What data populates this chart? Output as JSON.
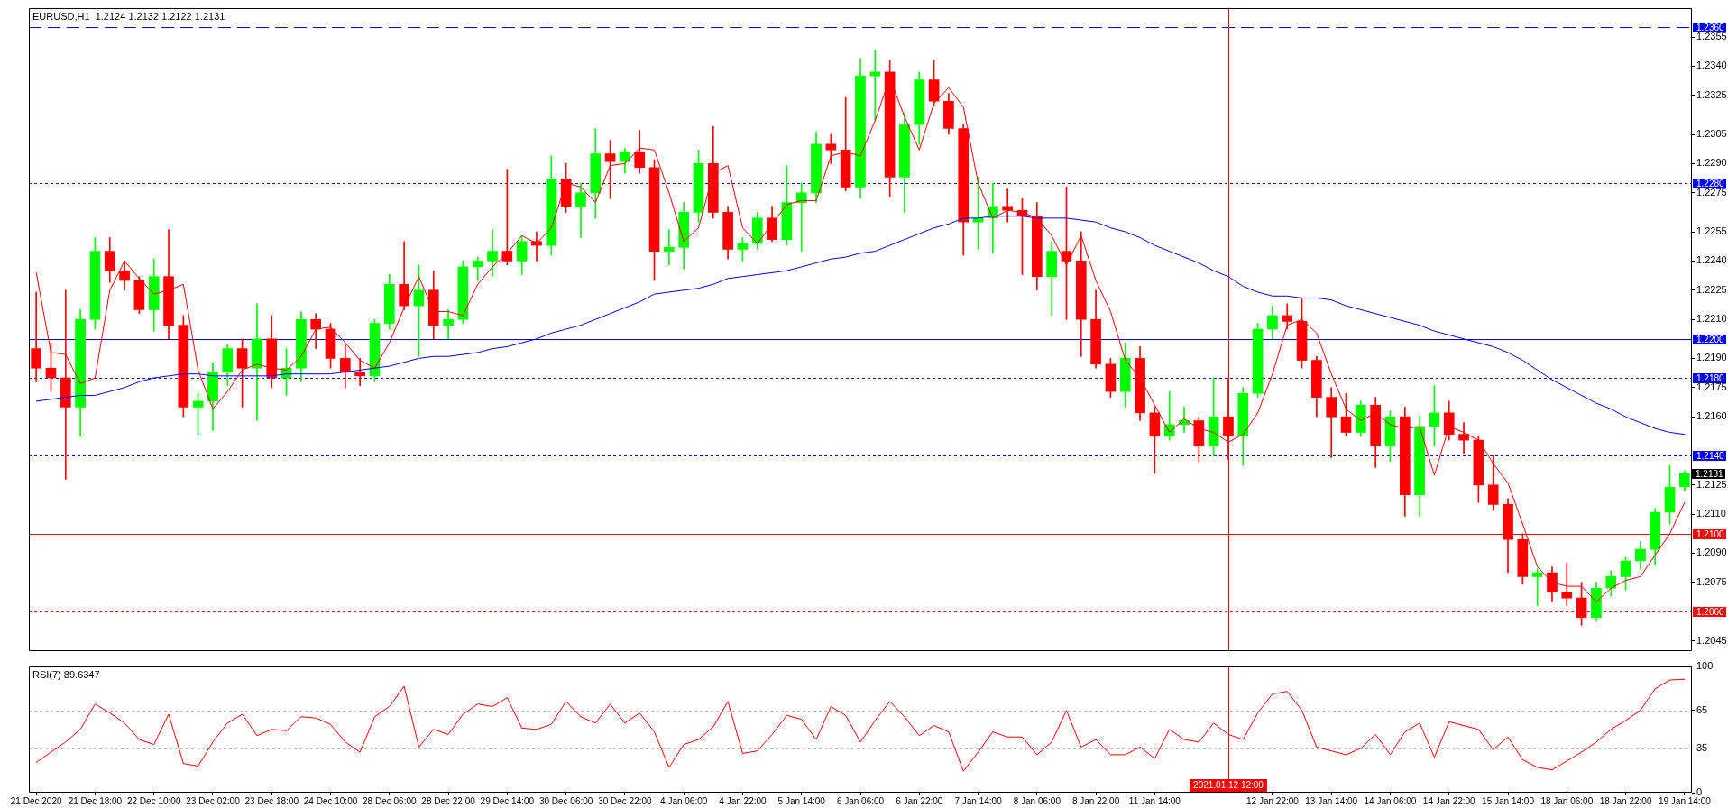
{
  "chart_data": [
    {
      "type": "candlestick",
      "title": "EURUSD,H1  1.2124 1.2132 1.2122 1.2131",
      "categories": [
        "21 Dec 2020",
        null,
        null,
        null,
        "21 Dec 18:00",
        null,
        null,
        null,
        "22 Dec 10:00",
        null,
        null,
        null,
        "23 Dec 02:00",
        null,
        null,
        null,
        "23 Dec 18:00",
        null,
        null,
        null,
        "24 Dec 10:00",
        null,
        null,
        null,
        "28 Dec 06:00",
        null,
        null,
        null,
        "28 Dec 22:00",
        null,
        null,
        null,
        "29 Dec 14:00",
        null,
        null,
        null,
        "30 Dec 06:00",
        null,
        null,
        null,
        "30 Dec 22:00",
        null,
        null,
        null,
        "4 Jan 06:00",
        null,
        null,
        null,
        "4 Jan 22:00",
        null,
        null,
        null,
        "5 Jan 14:00",
        null,
        null,
        null,
        "6 Jan 06:00",
        null,
        null,
        null,
        "6 Jan 22:00",
        null,
        null,
        null,
        "7 Jan 14:00",
        null,
        null,
        null,
        "8 Jan 06:00",
        null,
        null,
        null,
        "8 Jan 22:00",
        null,
        null,
        null,
        "11 Jan 14:00",
        null,
        null,
        null,
        null,
        "2021.01.12 12:00",
        null,
        null,
        "12 Jan 22:00",
        null,
        null,
        null,
        "13 Jan 14:00",
        null,
        null,
        null,
        "14 Jan 06:00",
        null,
        null,
        null,
        "14 Jan 22:00",
        null,
        null,
        null,
        "15 Jan 14:00",
        null,
        null,
        null,
        "18 Jan 06:00",
        null,
        null,
        null,
        "18 Jan 22:00",
        null,
        null,
        null,
        "19 Jan 14:00"
      ],
      "ohlc": [
        [
          1.2195,
          1.2224,
          1.2178,
          1.2185
        ],
        [
          1.2185,
          1.2198,
          1.2173,
          1.218
        ],
        [
          1.218,
          1.2225,
          1.2128,
          1.2165
        ],
        [
          1.2165,
          1.2215,
          1.215,
          1.221
        ],
        [
          1.221,
          1.2252,
          1.2205,
          1.2245
        ],
        [
          1.2245,
          1.2252,
          1.2229,
          1.2235
        ],
        [
          1.2235,
          1.224,
          1.2225,
          1.223
        ],
        [
          1.223,
          1.2232,
          1.2213,
          1.2215
        ],
        [
          1.2215,
          1.2241,
          1.2204,
          1.2232
        ],
        [
          1.2232,
          1.2256,
          1.22,
          1.2207
        ],
        [
          1.2207,
          1.2212,
          1.216,
          1.2165
        ],
        [
          1.2165,
          1.2172,
          1.2151,
          1.2168
        ],
        [
          1.2168,
          1.2188,
          1.2153,
          1.2183
        ],
        [
          1.2183,
          1.2197,
          1.2176,
          1.2195
        ],
        [
          1.2195,
          1.22,
          1.2165,
          1.2185
        ],
        [
          1.2185,
          1.2218,
          1.2158,
          1.22
        ],
        [
          1.22,
          1.2212,
          1.2175,
          1.218
        ],
        [
          1.218,
          1.2195,
          1.2171,
          1.2185
        ],
        [
          1.2185,
          1.2214,
          1.2178,
          1.221
        ],
        [
          1.221,
          1.2213,
          1.2195,
          1.2205
        ],
        [
          1.2205,
          1.2208,
          1.2185,
          1.219
        ],
        [
          1.219,
          1.2197,
          1.2175,
          1.2183
        ],
        [
          1.2183,
          1.219,
          1.2176,
          1.2181
        ],
        [
          1.2181,
          1.221,
          1.2178,
          1.2208
        ],
        [
          1.2208,
          1.2233,
          1.2205,
          1.2228
        ],
        [
          1.2228,
          1.225,
          1.2215,
          1.2217
        ],
        [
          1.2217,
          1.2238,
          1.2191,
          1.2225
        ],
        [
          1.2225,
          1.2235,
          1.22,
          1.2207
        ],
        [
          1.2207,
          1.2215,
          1.22,
          1.221
        ],
        [
          1.221,
          1.224,
          1.2208,
          1.2237
        ],
        [
          1.2237,
          1.2242,
          1.223,
          1.224
        ],
        [
          1.224,
          1.2256,
          1.2232,
          1.2245
        ],
        [
          1.2245,
          1.2287,
          1.2238,
          1.224
        ],
        [
          1.224,
          1.2253,
          1.2233,
          1.225
        ],
        [
          1.225,
          1.2255,
          1.224,
          1.2248
        ],
        [
          1.2248,
          1.2294,
          1.2243,
          1.2282
        ],
        [
          1.2282,
          1.229,
          1.2265,
          1.2268
        ],
        [
          1.2268,
          1.228,
          1.2252,
          1.2275
        ],
        [
          1.2275,
          1.2308,
          1.2262,
          1.2295
        ],
        [
          1.2295,
          1.2302,
          1.2272,
          1.2291
        ],
        [
          1.2291,
          1.2298,
          1.2285,
          1.2296
        ],
        [
          1.2296,
          1.2307,
          1.2285,
          1.2288
        ],
        [
          1.2288,
          1.2292,
          1.223,
          1.2245
        ],
        [
          1.2245,
          1.2256,
          1.2238,
          1.2247
        ],
        [
          1.2247,
          1.227,
          1.2236,
          1.2265
        ],
        [
          1.2265,
          1.2297,
          1.226,
          1.229
        ],
        [
          1.229,
          1.2309,
          1.2262,
          1.2265
        ],
        [
          1.2265,
          1.2268,
          1.2241,
          1.2246
        ],
        [
          1.2246,
          1.2252,
          1.224,
          1.2249
        ],
        [
          1.2249,
          1.2265,
          1.2246,
          1.2262
        ],
        [
          1.2262,
          1.2268,
          1.225,
          1.2251
        ],
        [
          1.2251,
          1.2289,
          1.2248,
          1.227
        ],
        [
          1.227,
          1.228,
          1.2245,
          1.2275
        ],
        [
          1.2275,
          1.2306,
          1.227,
          1.23
        ],
        [
          1.23,
          1.2305,
          1.229,
          1.2297
        ],
        [
          1.2297,
          1.2324,
          1.2276,
          1.2278
        ],
        [
          1.2278,
          1.2344,
          1.2272,
          1.2335
        ],
        [
          1.2335,
          1.2348,
          1.2312,
          1.2337
        ],
        [
          1.2337,
          1.2343,
          1.2273,
          1.2283
        ],
        [
          1.2283,
          1.2316,
          1.2265,
          1.231
        ],
        [
          1.231,
          1.2337,
          1.23,
          1.2333
        ],
        [
          1.2333,
          1.2343,
          1.232,
          1.2322
        ],
        [
          1.2322,
          1.2326,
          1.2305,
          1.2308
        ],
        [
          1.2308,
          1.231,
          1.2243,
          1.226
        ],
        [
          1.226,
          1.2283,
          1.2246,
          1.2262
        ],
        [
          1.2262,
          1.228,
          1.2244,
          1.2268
        ],
        [
          1.2268,
          1.2277,
          1.226,
          1.2266
        ],
        [
          1.2266,
          1.2272,
          1.2233,
          1.2263
        ],
        [
          1.2263,
          1.227,
          1.2225,
          1.2232
        ],
        [
          1.2232,
          1.225,
          1.2212,
          1.2245
        ],
        [
          1.2245,
          1.2278,
          1.221,
          1.224
        ],
        [
          1.224,
          1.2255,
          1.2191,
          1.221
        ],
        [
          1.221,
          1.2225,
          1.2185,
          1.2187
        ],
        [
          1.2187,
          1.219,
          1.217,
          1.2173
        ],
        [
          1.2173,
          1.2198,
          1.2165,
          1.219
        ],
        [
          1.219,
          1.2196,
          1.2158,
          1.2162
        ],
        [
          1.2162,
          1.2165,
          1.2131,
          1.215
        ],
        [
          1.215,
          1.2173,
          1.2148,
          1.2156
        ],
        [
          1.2156,
          1.2165,
          1.2152,
          1.2158
        ],
        [
          1.2158,
          1.216,
          1.2137,
          1.2145
        ],
        [
          1.2145,
          1.218,
          1.214,
          1.216
        ],
        [
          1.216,
          1.218,
          1.2138,
          1.215
        ],
        [
          1.215,
          1.2175,
          1.2135,
          1.2172
        ],
        [
          1.2172,
          1.2208,
          1.217,
          1.2205
        ],
        [
          1.2205,
          1.2217,
          1.22,
          1.2212
        ],
        [
          1.2212,
          1.2218,
          1.2205,
          1.2209
        ],
        [
          1.2209,
          1.2221,
          1.2185,
          1.2189
        ],
        [
          1.2189,
          1.2191,
          1.216,
          1.217
        ],
        [
          1.217,
          1.2175,
          1.2139,
          1.216
        ],
        [
          1.216,
          1.2172,
          1.215,
          1.2152
        ],
        [
          1.2152,
          1.2168,
          1.215,
          1.2166
        ],
        [
          1.2166,
          1.217,
          1.2134,
          1.2145
        ],
        [
          1.2145,
          1.2163,
          1.2137,
          1.216
        ],
        [
          1.216,
          1.2165,
          1.2109,
          1.212
        ],
        [
          1.212,
          1.216,
          1.2109,
          1.2155
        ],
        [
          1.2155,
          1.2176,
          1.2145,
          1.2162
        ],
        [
          1.2162,
          1.2168,
          1.2148,
          1.2151
        ],
        [
          1.2151,
          1.2157,
          1.2141,
          1.2148
        ],
        [
          1.2148,
          1.215,
          1.2116,
          1.2125
        ],
        [
          1.2125,
          1.214,
          1.2112,
          1.2115
        ],
        [
          1.2115,
          1.2118,
          1.208,
          1.2097
        ],
        [
          1.2097,
          1.21,
          1.2074,
          1.2078
        ],
        [
          1.2078,
          1.2082,
          1.2063,
          1.208
        ],
        [
          1.208,
          1.2083,
          1.2065,
          1.207
        ],
        [
          1.207,
          1.2085,
          1.2063,
          1.2067
        ],
        [
          1.2067,
          1.2075,
          1.2053,
          1.2057
        ],
        [
          1.2057,
          1.2075,
          1.2055,
          1.2072
        ],
        [
          1.2072,
          1.2081,
          1.2068,
          1.2078
        ],
        [
          1.2078,
          1.2088,
          1.2071,
          1.2086
        ],
        [
          1.2086,
          1.2096,
          1.2082,
          1.2092
        ],
        [
          1.2092,
          1.2113,
          1.2084,
          1.2111
        ],
        [
          1.2111,
          1.2135,
          1.2105,
          1.2124
        ],
        [
          1.2124,
          1.2132,
          1.2122,
          1.2131
        ]
      ],
      "colors": [
        "#ff0000",
        "#ff0000",
        "#ff0000",
        "#00ff00",
        "#00ff00",
        "#ff0000",
        "#ff0000",
        "#ff0000",
        "#00ff00",
        "#ff0000",
        "#ff0000",
        "#00ff00",
        "#00ff00",
        "#00ff00",
        "#ff0000",
        "#00ff00",
        "#ff0000",
        "#00ff00",
        "#00ff00",
        "#ff0000",
        "#ff0000",
        "#ff0000",
        "#ff0000",
        "#00ff00",
        "#00ff00",
        "#ff0000",
        "#00ff00",
        "#ff0000",
        "#00ff00",
        "#00ff00",
        "#00ff00",
        "#00ff00",
        "#ff0000",
        "#00ff00",
        "#ff0000",
        "#00ff00",
        "#ff0000",
        "#00ff00",
        "#00ff00",
        "#ff0000",
        "#00ff00",
        "#ff0000",
        "#ff0000",
        "#00ff00",
        "#00ff00",
        "#00ff00",
        "#ff0000",
        "#ff0000",
        "#00ff00",
        "#00ff00",
        "#ff0000",
        "#00ff00",
        "#00ff00",
        "#00ff00",
        "#ff0000",
        "#ff0000",
        "#00ff00",
        "#00ff00",
        "#ff0000",
        "#00ff00",
        "#00ff00",
        "#ff0000",
        "#ff0000",
        "#ff0000",
        "#00ff00",
        "#00ff00",
        "#ff0000",
        "#ff0000",
        "#ff0000",
        "#00ff00",
        "#ff0000",
        "#ff0000",
        "#ff0000",
        "#ff0000",
        "#00ff00",
        "#ff0000",
        "#ff0000",
        "#00ff00",
        "#00ff00",
        "#ff0000",
        "#00ff00",
        "#ff0000",
        "#00ff00",
        "#00ff00",
        "#00ff00",
        "#ff0000",
        "#ff0000",
        "#ff0000",
        "#ff0000",
        "#ff0000",
        "#00ff00",
        "#ff0000",
        "#00ff00",
        "#ff0000",
        "#00ff00",
        "#00ff00",
        "#ff0000",
        "#ff0000",
        "#ff0000",
        "#ff0000",
        "#ff0000",
        "#ff0000",
        "#00ff00",
        "#ff0000",
        "#ff0000",
        "#ff0000",
        "#00ff00",
        "#00ff00",
        "#00ff00",
        "#00ff00",
        "#00ff00",
        "#00ff00",
        "#00ff00"
      ],
      "series": [
        {
          "type": "line",
          "color": "#ff0000",
          "values": [
            1.2234,
            1.2193,
            1.2192,
            1.2177,
            1.218,
            1.2225,
            1.224,
            1.2231,
            1.2223,
            1.2225,
            1.2228,
            1.2184,
            1.2164,
            1.2173,
            1.2184,
            1.2187,
            1.2185,
            1.2184,
            1.2191,
            1.2205,
            1.2206,
            1.2198,
            1.2189,
            1.2185,
            1.2198,
            1.2216,
            1.2232,
            1.2214,
            1.2214,
            1.2212,
            1.2228,
            1.2237,
            1.2244,
            1.2253,
            1.2249,
            1.2257,
            1.228,
            1.2278,
            1.227,
            1.2289,
            1.229,
            1.2298,
            1.2297,
            1.2275,
            1.225,
            1.2257,
            1.2285,
            1.2289,
            1.2257,
            1.2249,
            1.2259,
            1.2269,
            1.2271,
            1.2271,
            1.2294,
            1.2296,
            1.2294,
            1.2312,
            1.2334,
            1.2314,
            1.2297,
            1.2321,
            1.2329,
            1.2319,
            1.228,
            1.2262,
            1.2266,
            1.2265,
            1.2262,
            1.2253,
            1.2238,
            1.2253,
            1.223,
            1.2214,
            1.2189,
            1.218,
            1.2166,
            1.2152,
            1.2159,
            1.2154,
            1.2152,
            1.2147,
            1.2151,
            1.2162,
            1.2182,
            1.2207,
            1.221,
            1.2203,
            1.2182,
            1.2164,
            1.2158,
            1.2162,
            1.2156,
            1.2154,
            1.2155,
            1.213,
            1.2155,
            1.2152,
            1.2148,
            1.2136,
            1.2126,
            1.2105,
            1.2083,
            1.2075,
            1.2073,
            1.2073,
            1.2065,
            1.2072,
            1.2076,
            1.2078,
            1.2089,
            1.21,
            1.2116
          ]
        },
        {
          "type": "line",
          "color": "#0000ff",
          "values": [
            1.2168,
            1.2169,
            1.217,
            1.2171,
            1.2171,
            1.2173,
            1.2175,
            1.2178,
            1.218,
            1.2181,
            1.2182,
            1.2182,
            1.2181,
            1.2181,
            1.2181,
            1.2181,
            1.2181,
            1.2182,
            1.2182,
            1.2182,
            1.2182,
            1.2183,
            1.2184,
            1.2185,
            1.2186,
            1.2188,
            1.219,
            1.2191,
            1.2191,
            1.2192,
            1.2193,
            1.2195,
            1.2196,
            1.2198,
            1.22,
            1.2203,
            1.2205,
            1.2207,
            1.221,
            1.2213,
            1.2216,
            1.2219,
            1.2223,
            1.2224,
            1.2225,
            1.2226,
            1.2228,
            1.2231,
            1.2232,
            1.2233,
            1.2234,
            1.2235,
            1.2237,
            1.2239,
            1.2241,
            1.2242,
            1.2244,
            1.2245,
            1.2248,
            1.2251,
            1.2254,
            1.2257,
            1.2259,
            1.2262,
            1.2262,
            1.2263,
            1.2263,
            1.2263,
            1.2262,
            1.2262,
            1.2262,
            1.2261,
            1.226,
            1.2257,
            1.2255,
            1.2252,
            1.2248,
            1.2245,
            1.2242,
            1.2239,
            1.2235,
            1.2232,
            1.2227,
            1.2224,
            1.2222,
            1.2222,
            1.2221,
            1.2221,
            1.222,
            1.2217,
            1.2215,
            1.2213,
            1.2211,
            1.2209,
            1.2207,
            1.2204,
            1.2202,
            1.22,
            1.2198,
            1.2196,
            1.2193,
            1.2189,
            1.2184,
            1.2179,
            1.2175,
            1.2171,
            1.2167,
            1.2164,
            1.216,
            1.2157,
            1.2154,
            1.2152,
            1.2151
          ]
        }
      ],
      "ylim": [
        1.204,
        1.237
      ],
      "yticks": [
        1.2045,
        1.2075,
        {
          "value": 1.209,
          "label": "1.2090"
        },
        {
          "value": 1.211,
          "label": "1.2110"
        },
        1.2125,
        {
          "value": 1.216,
          "label": "1.2160"
        },
        1.2175,
        {
          "value": 1.219,
          "label": "1.2190"
        },
        {
          "value": 1.221,
          "label": "1.2210"
        },
        1.2225,
        {
          "value": 1.224,
          "label": "1.2240"
        },
        1.2255,
        1.2275,
        {
          "value": 1.229,
          "label": "1.2290"
        },
        1.2305,
        1.2325,
        {
          "value": 1.234,
          "label": "1.2340"
        },
        1.2355
      ],
      "ref_lines": [
        {
          "axis": "y",
          "value": 1.236,
          "label": "1.2360",
          "color": "#0000ff",
          "line_style": "dashed"
        },
        {
          "axis": "y",
          "value": 1.228,
          "label": "1.2280",
          "color": "#0000ff",
          "line_style": "dotted"
        },
        {
          "axis": "y",
          "value": 1.22,
          "label": "1.2200",
          "color": "#0000ff",
          "line_style": "solid"
        },
        {
          "axis": "y",
          "value": 1.218,
          "label": "1.2180",
          "color": "#0000ff",
          "line_style": "dotted"
        },
        {
          "axis": "y",
          "value": 1.214,
          "label": "1.2140",
          "color": "#0000ff",
          "line_style": "dotted"
        },
        {
          "axis": "y",
          "value": 1.21,
          "label": "1.2100",
          "color": "#ff0000",
          "line_style": "solid"
        },
        {
          "axis": "y",
          "value": 1.206,
          "label": "1.2060",
          "color": "#ff0000",
          "line_style": "dotted"
        },
        {
          "axis": "x",
          "value": "2021.01.12 12:00",
          "color": "#ff0000",
          "line_style": "solid"
        }
      ],
      "annotations": [
        {
          "text": "1.2131",
          "x": "19 Jan 14:00",
          "y": 1.2131
        }
      ],
      "tick_labels": "y"
    },
    {
      "type": "line",
      "title": "RSI(7) 89.6347",
      "color": "#ff0000",
      "categories": [
        "21 Dec 2020",
        null,
        null,
        null,
        "21 Dec 18:00",
        null,
        null,
        null,
        "22 Dec 10:00",
        null,
        null,
        null,
        "23 Dec 02:00",
        null,
        null,
        null,
        "23 Dec 18:00",
        null,
        null,
        null,
        "24 Dec 10:00",
        null,
        null,
        null,
        "28 Dec 06:00",
        null,
        null,
        null,
        "28 Dec 22:00",
        null,
        null,
        null,
        "29 Dec 14:00",
        null,
        null,
        null,
        "30 Dec 06:00",
        null,
        null,
        null,
        "30 Dec 22:00",
        null,
        null,
        null,
        "4 Jan 06:00",
        null,
        null,
        null,
        "4 Jan 22:00",
        null,
        null,
        null,
        "5 Jan 14:00",
        null,
        null,
        null,
        "6 Jan 06:00",
        null,
        null,
        null,
        "6 Jan 22:00",
        null,
        null,
        null,
        "7 Jan 14:00",
        null,
        null,
        null,
        "8 Jan 06:00",
        null,
        null,
        null,
        "8 Jan 22:00",
        null,
        null,
        null,
        "11 Jan 14:00",
        null,
        null,
        null,
        null,
        "2021.01.12 12:00",
        null,
        null,
        "12 Jan 22:00",
        null,
        null,
        null,
        "13 Jan 14:00",
        null,
        null,
        null,
        "14 Jan 06:00",
        null,
        null,
        null,
        "14 Jan 22:00",
        null,
        null,
        null,
        "15 Jan 14:00",
        null,
        null,
        null,
        "18 Jan 06:00",
        null,
        null,
        null,
        "18 Jan 22:00",
        null,
        null,
        null,
        "19 Jan 14:00"
      ],
      "values": [
        24,
        32,
        40,
        50,
        70,
        63,
        55,
        42,
        38,
        62,
        23,
        21,
        40,
        55,
        62,
        45,
        50,
        49,
        60,
        59,
        54,
        40,
        32,
        60,
        68,
        84,
        36,
        50,
        46,
        62,
        70,
        68,
        75,
        51,
        50,
        54,
        72,
        60,
        55,
        70,
        55,
        63,
        48,
        20,
        38,
        42,
        52,
        72,
        31,
        33,
        46,
        61,
        58,
        42,
        68,
        61,
        40,
        57,
        72,
        60,
        45,
        53,
        48,
        17,
        32,
        48,
        44,
        44,
        30,
        40,
        65,
        36,
        42,
        30,
        30,
        36,
        27,
        50,
        42,
        40,
        55,
        46,
        42,
        63,
        78,
        80,
        65,
        36,
        33,
        30,
        35,
        46,
        30,
        48,
        55,
        28,
        56,
        53,
        50,
        34,
        44,
        26,
        20,
        18,
        25,
        32,
        40,
        50,
        57,
        65,
        82,
        89,
        89.6
      ],
      "ylim": [
        0,
        100
      ],
      "yticks": [
        0,
        35,
        65,
        100
      ],
      "ref_lines": [
        {
          "axis": "y",
          "value": 35,
          "color": "#c0c0c0",
          "line_style": "dotted"
        },
        {
          "axis": "y",
          "value": 65,
          "color": "#c0c0c0",
          "line_style": "dotted"
        },
        {
          "axis": "x",
          "value": "2021.01.12 12:00",
          "color": "#ff0000",
          "line_style": "solid"
        }
      ]
    }
  ]
}
